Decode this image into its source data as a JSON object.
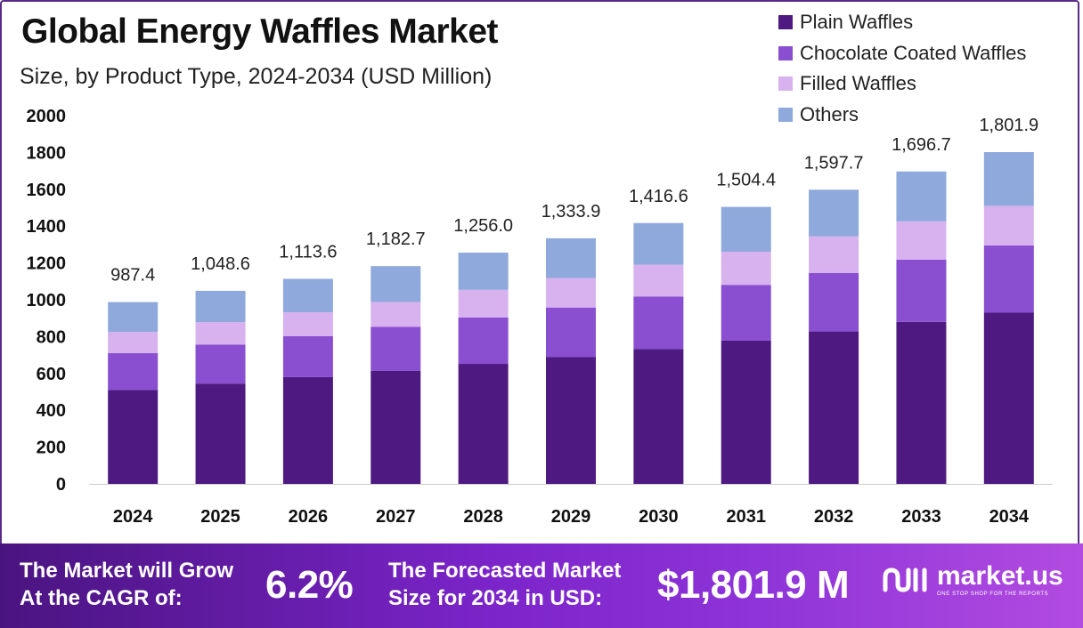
{
  "header": {
    "title": "Global Energy Waffles Market",
    "subtitle": "Size, by Product Type, 2024-2034 (USD Million)"
  },
  "legend": [
    {
      "label": "Plain Waffles",
      "color": "#4e1a82"
    },
    {
      "label": "Chocolate Coated Waffles",
      "color": "#8a4fd0"
    },
    {
      "label": "Filled Waffles",
      "color": "#d7b2ef"
    },
    {
      "label": "Others",
      "color": "#8fa9dc"
    }
  ],
  "chart_data": {
    "type": "bar",
    "stacked": true,
    "categories": [
      "2024",
      "2025",
      "2026",
      "2027",
      "2028",
      "2029",
      "2030",
      "2031",
      "2032",
      "2033",
      "2034"
    ],
    "series": [
      {
        "name": "Plain Waffles",
        "color": "#4e1a82",
        "values": [
          510,
          545,
          580,
          615,
          652,
          690,
          733,
          778,
          828,
          880,
          930
        ]
      },
      {
        "name": "Chocolate Coated Waffles",
        "color": "#8a4fd0",
        "values": [
          200,
          212,
          222,
          238,
          252,
          268,
          285,
          303,
          318,
          338,
          365
        ]
      },
      {
        "name": "Filled Waffles",
        "color": "#d7b2ef",
        "values": [
          115,
          122,
          130,
          135,
          150,
          160,
          172,
          180,
          198,
          208,
          215
        ]
      },
      {
        "name": "Others",
        "color": "#8fa9dc",
        "values": [
          162.4,
          169.6,
          181.6,
          194.7,
          202.0,
          215.9,
          226.6,
          243.4,
          253.7,
          270.7,
          291.9
        ]
      }
    ],
    "totals": [
      "987.4",
      "1,048.6",
      "1,113.6",
      "1,182.7",
      "1,256.0",
      "1,333.9",
      "1,416.6",
      "1,504.4",
      "1,597.7",
      "1,696.7",
      "1,801.9"
    ],
    "yticks": [
      "0",
      "200",
      "400",
      "600",
      "800",
      "1000",
      "1200",
      "1400",
      "1600",
      "1800",
      "2000"
    ],
    "ylim": [
      0,
      2000
    ],
    "grid": false,
    "legend_position": "top-right"
  },
  "footer": {
    "cagr_label_line1": "The Market will Grow",
    "cagr_label_line2": "At the CAGR of:",
    "cagr_value": "6.2%",
    "forecast_label_line1": "The Forecasted Market",
    "forecast_label_line2": "Size for 2034 in USD:",
    "forecast_value": "$1,801.9 M",
    "brand_name": "market.us",
    "brand_tagline": "ONE STOP SHOP FOR THE REPORTS"
  }
}
